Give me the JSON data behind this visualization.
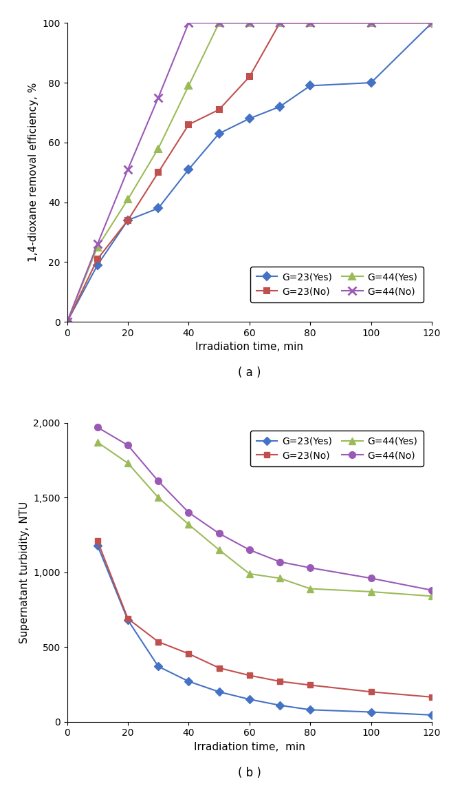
{
  "plot_a": {
    "xlabel": "Irradiation time, min",
    "ylabel": "1,4-dioxane removal efficiency, %",
    "xlim": [
      0,
      120
    ],
    "ylim": [
      0,
      100
    ],
    "xticks": [
      0,
      20,
      40,
      60,
      80,
      100,
      120
    ],
    "yticks": [
      0,
      20,
      40,
      60,
      80,
      100
    ],
    "caption": "( a )",
    "series": [
      {
        "label": "G=23(Yes)",
        "color": "#4472C4",
        "marker": "D",
        "markersize": 6,
        "x": [
          0,
          10,
          20,
          30,
          40,
          50,
          60,
          70,
          80,
          100,
          120
        ],
        "y": [
          0,
          19,
          34,
          38,
          51,
          63,
          68,
          72,
          79,
          80,
          100
        ]
      },
      {
        "label": "G=23(No)",
        "color": "#C0504D",
        "marker": "s",
        "markersize": 6,
        "x": [
          0,
          10,
          20,
          30,
          40,
          50,
          60,
          70,
          80,
          100,
          120
        ],
        "y": [
          0,
          21,
          34,
          50,
          66,
          71,
          82,
          100,
          100,
          100,
          100
        ]
      },
      {
        "label": "G=44(Yes)",
        "color": "#9BBB59",
        "marker": "^",
        "markersize": 7,
        "x": [
          0,
          10,
          20,
          30,
          40,
          50,
          60,
          70,
          80,
          100,
          120
        ],
        "y": [
          0,
          25,
          41,
          58,
          79,
          100,
          100,
          100,
          100,
          100,
          100
        ]
      },
      {
        "label": "G=44(No)",
        "color": "#9B59B6",
        "marker": "x",
        "markersize": 8,
        "markeredgewidth": 2,
        "x": [
          0,
          10,
          20,
          30,
          40,
          50,
          60,
          70,
          80,
          100,
          120
        ],
        "y": [
          0,
          26,
          51,
          75,
          100,
          100,
          100,
          100,
          100,
          100,
          100
        ]
      }
    ]
  },
  "plot_b": {
    "xlabel": "Irradiation time,  min",
    "ylabel": "Supernatant turbidity, NTU",
    "xlim": [
      0,
      120
    ],
    "ylim": [
      0,
      2000
    ],
    "xticks": [
      0,
      20,
      40,
      60,
      80,
      100,
      120
    ],
    "yticks": [
      0,
      500,
      1000,
      1500,
      2000
    ],
    "yticklabels": [
      "0",
      "500",
      "1,000",
      "1,500",
      "2,000"
    ],
    "caption": "( b )",
    "series": [
      {
        "label": "G=23(Yes)",
        "color": "#4472C4",
        "marker": "D",
        "markersize": 6,
        "x": [
          10,
          20,
          30,
          40,
          50,
          60,
          70,
          80,
          100,
          120
        ],
        "y": [
          1180,
          680,
          370,
          270,
          200,
          150,
          110,
          80,
          65,
          45
        ]
      },
      {
        "label": "G=23(No)",
        "color": "#C0504D",
        "marker": "s",
        "markersize": 6,
        "x": [
          10,
          20,
          30,
          40,
          50,
          60,
          70,
          80,
          100,
          120
        ],
        "y": [
          1210,
          690,
          535,
          455,
          360,
          310,
          270,
          245,
          200,
          165
        ]
      },
      {
        "label": "G=44(Yes)",
        "color": "#9BBB59",
        "marker": "^",
        "markersize": 7,
        "x": [
          10,
          20,
          30,
          40,
          50,
          60,
          70,
          80,
          100,
          120
        ],
        "y": [
          1870,
          1730,
          1500,
          1320,
          1150,
          990,
          960,
          890,
          870,
          840
        ]
      },
      {
        "label": "G=44(No)",
        "color": "#9B59B6",
        "marker": "o",
        "markersize": 7,
        "x": [
          10,
          20,
          30,
          40,
          50,
          60,
          70,
          80,
          100,
          120
        ],
        "y": [
          1970,
          1850,
          1610,
          1400,
          1260,
          1150,
          1070,
          1030,
          960,
          880
        ]
      }
    ]
  }
}
